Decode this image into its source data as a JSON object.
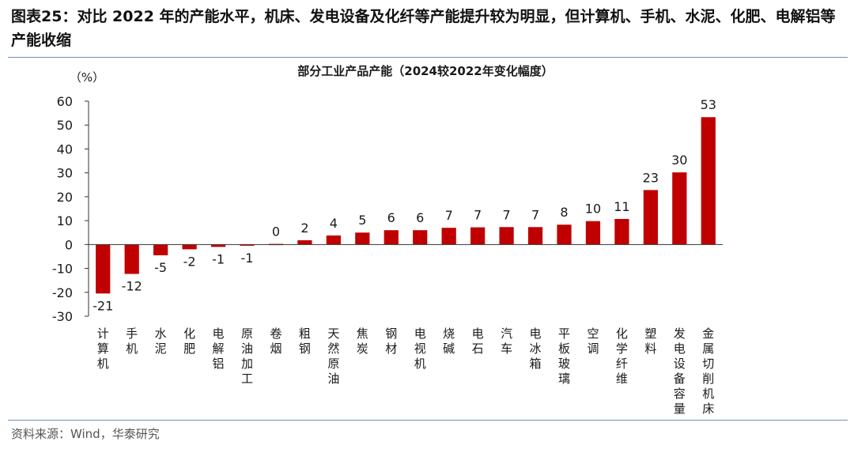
{
  "caption": "图表25：对比 2022 年的产能水平，机床、发电设备及化纤等产能提升较为明显，但计算机、手机、水泥、化肥、电解铝等产能收缩",
  "source": "资料来源：Wind，华泰研究",
  "chart_data": {
    "type": "bar",
    "title": "部分工业产品产能（2024较2022年变化幅度）",
    "ylabel": "（%）",
    "ylim": [
      -30,
      60
    ],
    "yticks": [
      60,
      50,
      40,
      30,
      20,
      10,
      0,
      -10,
      -20,
      -30
    ],
    "bar_color": "#c00000",
    "grid": false,
    "legend": "none",
    "categories": [
      "计算机",
      "手机",
      "水泥",
      "化肥",
      "电解铝",
      "原油加工",
      "卷烟",
      "粗钢",
      "天然原油",
      "焦炭",
      "钢材",
      "电视机",
      "烧碱",
      "电石",
      "汽车",
      "电冰箱",
      "平板玻璃",
      "空调",
      "化学纤维",
      "塑料",
      "发电设备容量",
      "金属切削机床"
    ],
    "values": [
      -20.5,
      -12.3,
      -4.5,
      -2.0,
      -1.0,
      -0.5,
      0.2,
      1.8,
      3.8,
      5.0,
      6.0,
      6.0,
      7.0,
      7.2,
      7.3,
      7.3,
      8.3,
      9.8,
      10.7,
      22.8,
      30.2,
      53.3
    ],
    "data_labels": [
      "-21",
      "-12",
      "-5",
      "-2",
      "-1",
      "-1",
      "0",
      "2",
      "4",
      "5",
      "6",
      "6",
      "7",
      "7",
      "7",
      "7",
      "8",
      "10",
      "11",
      "23",
      "30",
      "53"
    ]
  }
}
